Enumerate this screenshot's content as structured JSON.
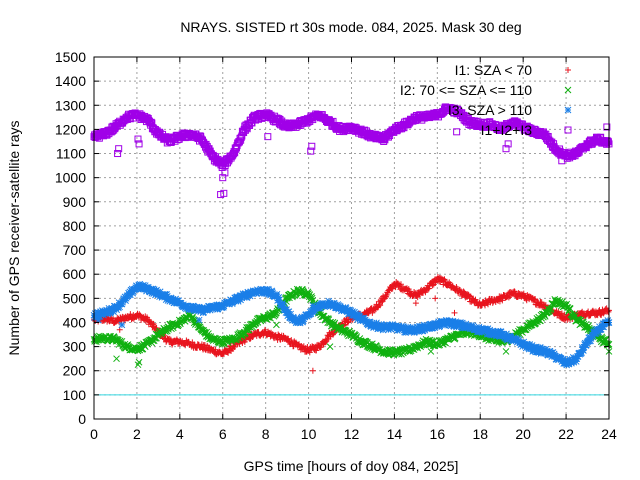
{
  "chart_data": {
    "type": "scatter",
    "title": "NRAYS. SISTED rt 30s mode. 084, 2025. Mask 30 deg",
    "xlabel": "GPS time [hours of doy 084, 2025]",
    "ylabel": "Number of GPS receiver-satellite rays",
    "xlim": [
      0,
      24
    ],
    "ylim": [
      0,
      1500
    ],
    "xticks": [
      "0",
      "2",
      "4",
      "6",
      "8",
      "10",
      "12",
      "14",
      "16",
      "18",
      "20",
      "22",
      "24"
    ],
    "yticks": [
      "0",
      "100",
      "200",
      "300",
      "400",
      "500",
      "600",
      "700",
      "800",
      "900",
      "1000",
      "1100",
      "1200",
      "1300",
      "1400",
      "1500"
    ],
    "grid": true,
    "legend_position": "top-right",
    "reference_line": {
      "y": 100,
      "color": "#33d6e0"
    },
    "series": [
      {
        "name": "I1: SZA < 70",
        "marker": "+",
        "color": "#e8141e",
        "x": [
          0,
          0.5,
          1,
          1.5,
          2,
          2.5,
          3,
          3.5,
          4,
          4.5,
          5,
          5.5,
          6,
          6.5,
          7,
          7.5,
          8,
          8.5,
          9,
          9.5,
          10,
          10.5,
          11,
          11.5,
          12,
          12.5,
          13,
          13.5,
          14,
          14.5,
          15,
          15.5,
          16,
          16.5,
          17,
          17.5,
          18,
          18.5,
          19,
          19.5,
          20,
          20.5,
          21,
          21.5,
          22,
          22.5,
          23,
          23.5,
          24
        ],
        "y": [
          410,
          415,
          405,
          420,
          430,
          410,
          360,
          320,
          320,
          310,
          300,
          285,
          270,
          300,
          330,
          350,
          360,
          340,
          330,
          300,
          285,
          300,
          350,
          390,
          420,
          430,
          450,
          500,
          560,
          540,
          510,
          540,
          580,
          560,
          530,
          500,
          470,
          490,
          500,
          520,
          510,
          490,
          470,
          440,
          420,
          430,
          440,
          440,
          450
        ],
        "outliers": [
          [
            0.1,
            430
          ],
          [
            1.2,
            370
          ],
          [
            10.2,
            200
          ],
          [
            10.8,
            330
          ],
          [
            15,
            480
          ],
          [
            15.9,
            500
          ],
          [
            16.8,
            440
          ],
          [
            21.8,
            430
          ]
        ]
      },
      {
        "name": "I2: 70 <= SZA <= 110",
        "marker": "x",
        "color": "#10b010",
        "x": [
          0,
          0.5,
          1,
          1.5,
          2,
          2.5,
          3,
          3.5,
          4,
          4.5,
          5,
          5.5,
          6,
          6.5,
          7,
          7.5,
          8,
          8.5,
          9,
          9.5,
          10,
          10.5,
          11,
          11.5,
          12,
          12.5,
          13,
          13.5,
          14,
          14.5,
          15,
          15.5,
          16,
          16.5,
          17,
          17.5,
          18,
          18.5,
          19,
          19.5,
          20,
          20.5,
          21,
          21.5,
          22,
          22.5,
          23,
          23.5,
          24
        ],
        "y": [
          330,
          335,
          330,
          300,
          290,
          310,
          350,
          380,
          400,
          430,
          370,
          330,
          320,
          330,
          360,
          400,
          420,
          440,
          500,
          530,
          520,
          440,
          400,
          370,
          350,
          320,
          300,
          280,
          275,
          280,
          300,
          320,
          310,
          330,
          350,
          360,
          350,
          330,
          320,
          340,
          370,
          400,
          430,
          490,
          470,
          410,
          380,
          340,
          310
        ],
        "outliers": [
          [
            1.05,
            250
          ],
          [
            2.05,
            225
          ],
          [
            2.1,
            235
          ],
          [
            8.5,
            390
          ],
          [
            11,
            300
          ],
          [
            15.7,
            280
          ],
          [
            19.2,
            280
          ],
          [
            24,
            280
          ]
        ]
      },
      {
        "name": "I3: SZA > 110",
        "marker": "*",
        "color": "#1a7fe8",
        "x": [
          0,
          0.5,
          1,
          1.5,
          2,
          2.5,
          3,
          3.5,
          4,
          4.5,
          5,
          5.5,
          6,
          6.5,
          7,
          7.5,
          8,
          8.5,
          9,
          9.5,
          10,
          10.5,
          11,
          11.5,
          12,
          12.5,
          13,
          13.5,
          14,
          14.5,
          15,
          15.5,
          16,
          16.5,
          17,
          17.5,
          18,
          18.5,
          19,
          19.5,
          20,
          20.5,
          21,
          21.5,
          22,
          22.5,
          23,
          23.5,
          24
        ],
        "y": [
          430,
          440,
          460,
          500,
          550,
          540,
          520,
          500,
          480,
          460,
          450,
          460,
          470,
          490,
          510,
          530,
          530,
          510,
          440,
          400,
          430,
          470,
          480,
          460,
          440,
          410,
          390,
          380,
          380,
          370,
          370,
          380,
          390,
          400,
          390,
          380,
          370,
          360,
          350,
          330,
          310,
          290,
          280,
          260,
          230,
          250,
          320,
          370,
          400
        ],
        "outliers": [
          [
            0.2,
            410
          ],
          [
            1.3,
            390
          ],
          [
            4.9,
            410
          ],
          [
            10.2,
            470
          ]
        ]
      },
      {
        "name": "I1+I2+I3",
        "marker": "square",
        "color": "#a000e8",
        "x": [
          0,
          0.5,
          1,
          1.5,
          2,
          2.5,
          3,
          3.5,
          4,
          4.5,
          5,
          5.5,
          6,
          6.5,
          7,
          7.5,
          8,
          8.5,
          9,
          9.5,
          10,
          10.5,
          11,
          11.5,
          12,
          12.5,
          13,
          13.5,
          14,
          14.5,
          15,
          15.5,
          16,
          16.5,
          17,
          17.5,
          18,
          18.5,
          19,
          19.5,
          20,
          20.5,
          21,
          21.5,
          22,
          22.5,
          23,
          23.5,
          24
        ],
        "y": [
          1170,
          1180,
          1210,
          1250,
          1260,
          1240,
          1180,
          1150,
          1170,
          1180,
          1160,
          1090,
          1050,
          1100,
          1200,
          1250,
          1260,
          1240,
          1210,
          1220,
          1240,
          1260,
          1230,
          1200,
          1210,
          1190,
          1170,
          1160,
          1200,
          1220,
          1250,
          1250,
          1260,
          1290,
          1270,
          1230,
          1220,
          1220,
          1200,
          1230,
          1210,
          1190,
          1180,
          1120,
          1090,
          1100,
          1140,
          1160,
          1140
        ],
        "outliers": [
          [
            1.1,
            1100
          ],
          [
            1.15,
            1120
          ],
          [
            2.05,
            1160
          ],
          [
            2.1,
            1140
          ],
          [
            5.9,
            930
          ],
          [
            6.05,
            935
          ],
          [
            6.0,
            1000
          ],
          [
            6.1,
            1020
          ],
          [
            8.1,
            1170
          ],
          [
            10.1,
            1110
          ],
          [
            10.15,
            1130
          ],
          [
            13.5,
            1150
          ],
          [
            16.9,
            1190
          ],
          [
            19.3,
            1140
          ],
          [
            19.2,
            1120
          ],
          [
            21.8,
            1070
          ],
          [
            23.9,
            1210
          ]
        ]
      }
    ]
  }
}
